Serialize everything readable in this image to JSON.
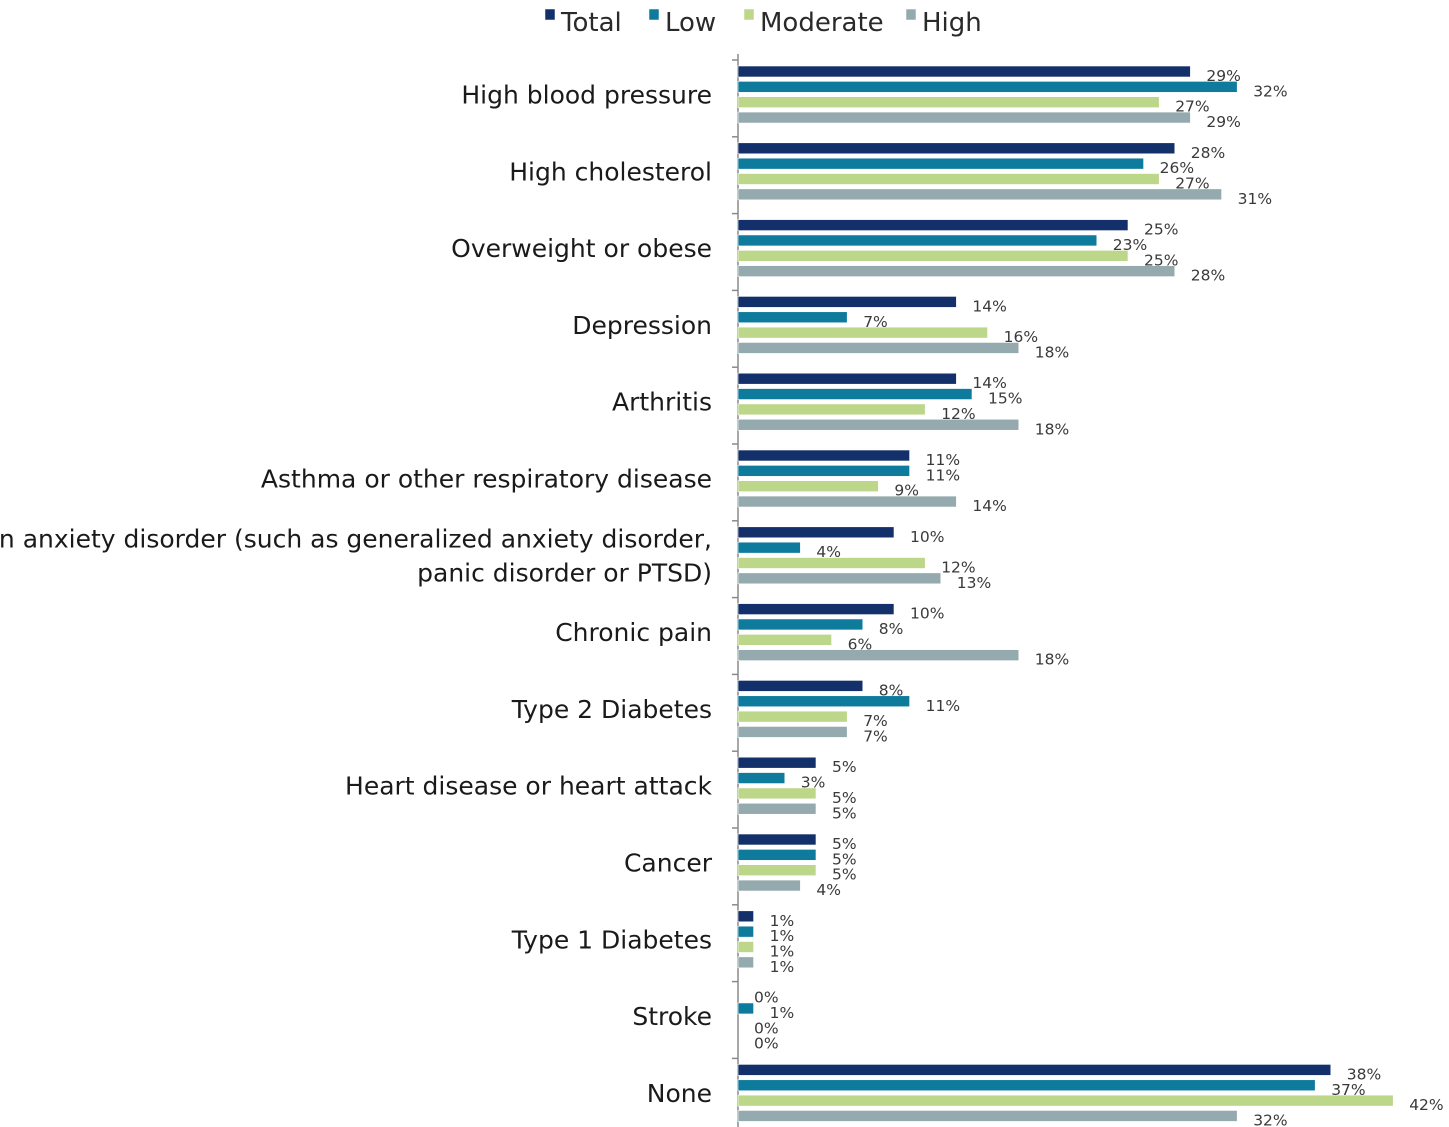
{
  "chart_data": {
    "type": "bar",
    "orientation": "horizontal",
    "value_suffix": "%",
    "xlim": [
      0,
      42
    ],
    "grid": false,
    "legend_position": "top",
    "categories": [
      "High blood pressure",
      "High cholesterol",
      "Overweight or obese",
      "Depression",
      "Arthritis",
      "Asthma or other respiratory disease",
      "An anxiety disorder (such as generalized anxiety disorder, panic disorder or PTSD)",
      "Chronic pain",
      "Type 2 Diabetes",
      "Heart disease or heart attack",
      "Cancer",
      "Type 1 Diabetes",
      "Stroke",
      "None"
    ],
    "category_label_lines": [
      [
        "High blood pressure"
      ],
      [
        "High cholesterol"
      ],
      [
        "Overweight or obese"
      ],
      [
        "Depression"
      ],
      [
        "Arthritis"
      ],
      [
        "Asthma or other respiratory disease"
      ],
      [
        "An anxiety disorder (such as generalized anxiety disorder,",
        "panic disorder or PTSD)"
      ],
      [
        "Chronic pain"
      ],
      [
        "Type 2 Diabetes"
      ],
      [
        "Heart disease or heart attack"
      ],
      [
        "Cancer"
      ],
      [
        "Type 1 Diabetes"
      ],
      [
        "Stroke"
      ],
      [
        "None"
      ]
    ],
    "series": [
      {
        "name": "Total",
        "color": "#13306a",
        "values": [
          29,
          28,
          25,
          14,
          14,
          11,
          10,
          10,
          8,
          5,
          5,
          1,
          0,
          38
        ]
      },
      {
        "name": "Low",
        "color": "#0e7b9c",
        "values": [
          32,
          26,
          23,
          7,
          15,
          11,
          4,
          8,
          11,
          3,
          5,
          1,
          1,
          37
        ]
      },
      {
        "name": "Moderate",
        "color": "#bcd68a",
        "values": [
          27,
          27,
          25,
          16,
          12,
          9,
          12,
          6,
          7,
          5,
          5,
          1,
          0,
          42
        ]
      },
      {
        "name": "High",
        "color": "#95aaaf",
        "values": [
          29,
          31,
          28,
          18,
          18,
          14,
          13,
          18,
          7,
          5,
          4,
          1,
          0,
          32
        ]
      }
    ]
  }
}
